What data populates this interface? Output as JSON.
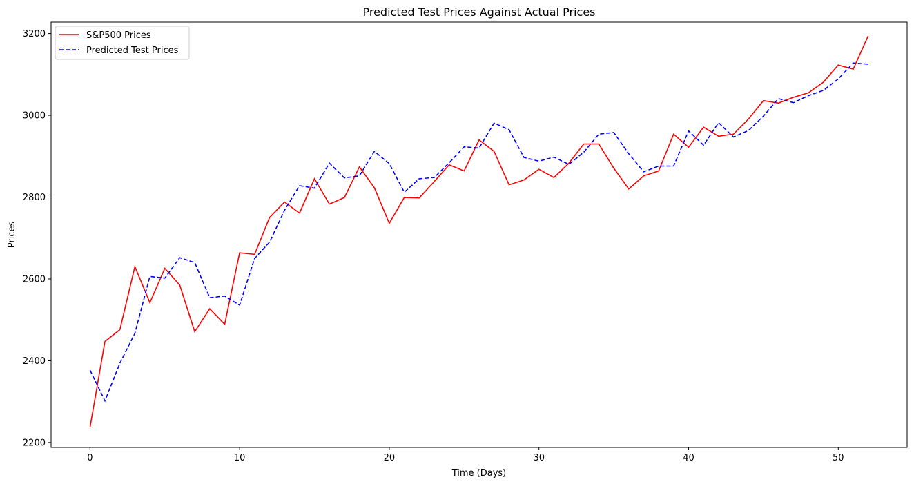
{
  "chart_data": {
    "type": "line",
    "title": "Predicted Test Prices Against Actual Prices",
    "xlabel": "Time (Days)",
    "ylabel": "Prices",
    "xlim": [
      -2.6,
      54.6
    ],
    "ylim": [
      2188,
      3228
    ],
    "xticks": [
      0,
      10,
      20,
      30,
      40,
      50
    ],
    "yticks": [
      2200,
      2400,
      2600,
      2800,
      3000,
      3200
    ],
    "grid": false,
    "legend_position": "top-left",
    "x": [
      0,
      1,
      2,
      3,
      4,
      5,
      6,
      7,
      8,
      9,
      10,
      11,
      12,
      13,
      14,
      15,
      16,
      17,
      18,
      19,
      20,
      21,
      22,
      23,
      24,
      25,
      26,
      27,
      28,
      29,
      30,
      31,
      32,
      33,
      34,
      35,
      36,
      37,
      38,
      39,
      40,
      41,
      42,
      43,
      44,
      45,
      46,
      47,
      48,
      49,
      50,
      51,
      52
    ],
    "series": [
      {
        "name": "S&P500 Prices",
        "color": "#ff0000",
        "style": "solid",
        "values": [
          2237,
          2447,
          2476,
          2630,
          2542,
          2626,
          2585,
          2471,
          2527,
          2489,
          2664,
          2660,
          2750,
          2788,
          2761,
          2845,
          2783,
          2799,
          2874,
          2823,
          2736,
          2799,
          2798,
          2838,
          2879,
          2864,
          2940,
          2912,
          2830,
          2842,
          2868,
          2848,
          2883,
          2930,
          2930,
          2871,
          2820,
          2852,
          2864,
          2954,
          2922,
          2971,
          2949,
          2954,
          2991,
          3036,
          3030,
          3044,
          3055,
          3081,
          3123,
          3113,
          3194
        ]
      },
      {
        "name": "Predicted Test Prices",
        "color": "#0000ff",
        "style": "dashed",
        "values": [
          2377,
          2302,
          2394,
          2467,
          2606,
          2602,
          2652,
          2640,
          2554,
          2558,
          2536,
          2650,
          2690,
          2768,
          2828,
          2822,
          2883,
          2847,
          2852,
          2912,
          2882,
          2812,
          2845,
          2848,
          2884,
          2923,
          2920,
          2981,
          2965,
          2897,
          2888,
          2898,
          2880,
          2910,
          2954,
          2958,
          2906,
          2862,
          2876,
          2876,
          2962,
          2927,
          2982,
          2947,
          2963,
          2998,
          3041,
          3031,
          3048,
          3061,
          3089,
          3128,
          3125
        ]
      }
    ]
  }
}
